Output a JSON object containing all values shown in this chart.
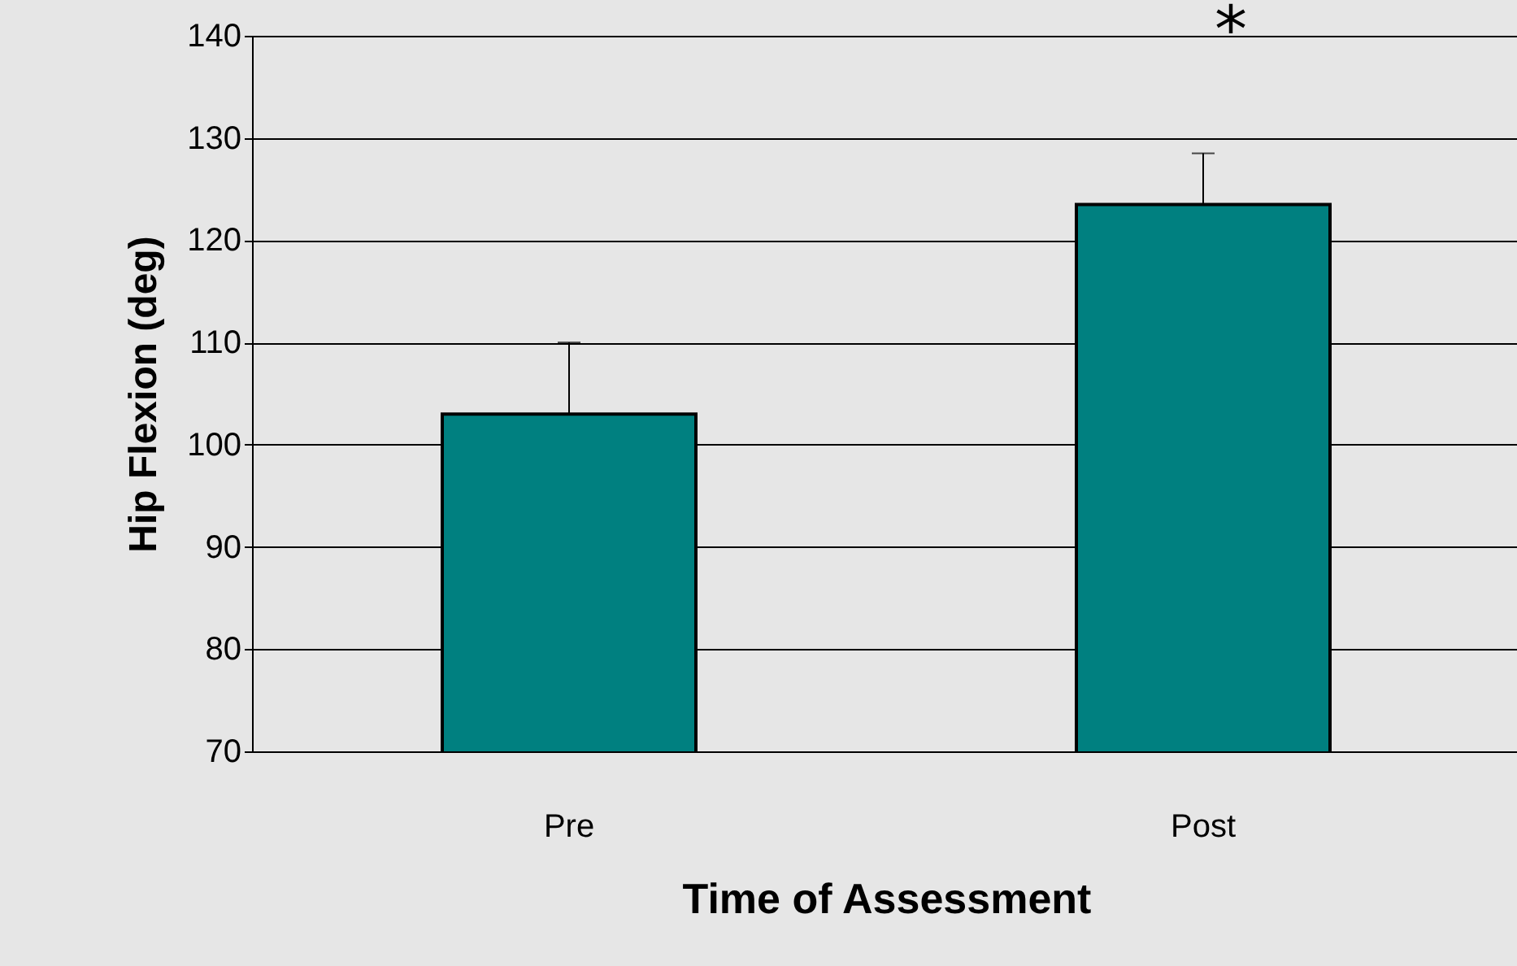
{
  "chart_data": {
    "type": "bar",
    "xlabel": "Time of Assessment",
    "ylabel": "Hip Flexion (deg)",
    "categories": [
      "Pre",
      "Post"
    ],
    "values": [
      103,
      123.5
    ],
    "errors": [
      [
        103,
        110
      ],
      [
        123.5,
        128.5
      ]
    ],
    "color": "#008080",
    "ylim": [
      70,
      140
    ],
    "yticks": [
      70,
      80,
      90,
      100,
      110,
      120,
      130,
      140
    ],
    "grid": "y",
    "annotations": [
      "*"
    ]
  }
}
